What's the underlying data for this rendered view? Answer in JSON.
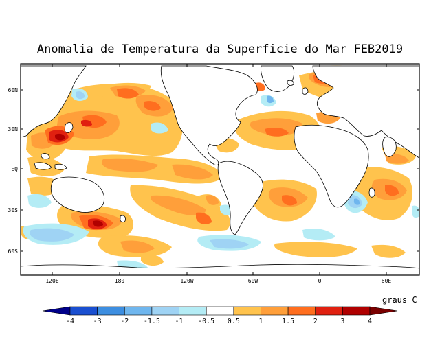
{
  "title": "Anomalia de Temperatura da Superficie do Mar FEB2019",
  "units": "graus C",
  "colors": {
    "ocean_neutral": "#ffffff",
    "land": "#ffffff",
    "coast": "#000000",
    "warm_05": "#ffc34d",
    "warm_1": "#ff9f3a",
    "warm_15": "#ff6e1f",
    "warm_2": "#e02010",
    "warm_3": "#b00000",
    "warm_4": "#7a0000",
    "cool_05": "#b4ecf5",
    "cool_1": "#9fd3f4",
    "cool_15": "#6fb6ee",
    "cool_2": "#3d8ee0",
    "cool_3": "#1a4fd0",
    "cool_4": "#00008a"
  },
  "axes": {
    "y_ticks": [
      "60N",
      "30N",
      "EQ",
      "30S",
      "60S"
    ],
    "x_ticks": [
      "120E",
      "180",
      "120W",
      "60W",
      "0",
      "60E"
    ]
  },
  "colorbar": {
    "labels": [
      "-4",
      "-3",
      "-2",
      "-1.5",
      "-1",
      "-0.5",
      "0.5",
      "1",
      "1.5",
      "2",
      "3",
      "4"
    ],
    "colors": [
      "#00008a",
      "#1a4fd0",
      "#3d8ee0",
      "#6fb6ee",
      "#9fd3f4",
      "#b4ecf5",
      "#ffffff",
      "#ffc34d",
      "#ff9f3a",
      "#ff6e1f",
      "#e02010",
      "#b00000",
      "#7a0000"
    ]
  }
}
